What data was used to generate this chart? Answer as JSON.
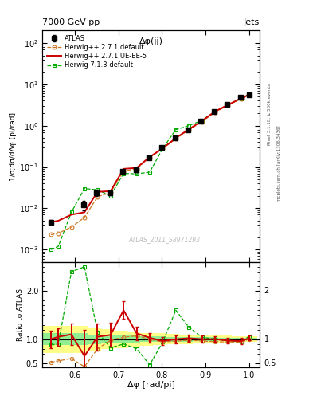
{
  "title_left": "7000 GeV pp",
  "title_right": "Jets",
  "plot_title": "Δφ(jj)",
  "watermark": "ATLAS_2011_S8971293",
  "ylabel_main": "1/σ;dσ/dΔφ [pi/rad]",
  "ylabel_ratio": "Ratio to ATLAS",
  "xlabel": "Δφ [rad/pi]",
  "right_label_top": "Rivet 3.1.10, ≥ 500k events",
  "right_label_bot": "mcplots.cern.ch [arXiv:1306.3436]",
  "atlas_x": [
    0.545,
    0.62,
    0.65,
    0.68,
    0.71,
    0.74,
    0.77,
    0.8,
    0.83,
    0.86,
    0.89,
    0.92,
    0.95,
    0.98,
    1.0
  ],
  "atlas_y": [
    0.0046,
    0.012,
    0.024,
    0.024,
    0.077,
    0.084,
    0.17,
    0.3,
    0.5,
    0.8,
    1.3,
    2.2,
    3.3,
    4.8,
    5.5
  ],
  "atlas_yerr": [
    0.0006,
    0.003,
    0.004,
    0.003,
    0.008,
    0.008,
    0.013,
    0.02,
    0.04,
    0.05,
    0.09,
    0.14,
    0.2,
    0.3,
    0.3
  ],
  "hw271_x": [
    0.545,
    0.562,
    0.592,
    0.622,
    0.652,
    0.682,
    0.712,
    0.742,
    0.772,
    0.802,
    0.832,
    0.862,
    0.892,
    0.922,
    0.952,
    0.982,
    1.0
  ],
  "hw271_y": [
    0.0023,
    0.0025,
    0.0035,
    0.006,
    0.019,
    0.024,
    0.08,
    0.09,
    0.17,
    0.28,
    0.48,
    0.78,
    1.25,
    2.1,
    3.1,
    4.5,
    5.5
  ],
  "hw271ue_x": [
    0.545,
    0.562,
    0.592,
    0.622,
    0.652,
    0.682,
    0.712,
    0.742,
    0.772,
    0.802,
    0.832,
    0.862,
    0.892,
    0.922,
    0.952,
    0.982,
    1.0
  ],
  "hw271ue_y": [
    0.0046,
    0.005,
    0.007,
    0.008,
    0.025,
    0.026,
    0.09,
    0.095,
    0.175,
    0.285,
    0.5,
    0.82,
    1.3,
    2.2,
    3.2,
    4.6,
    5.6
  ],
  "hw271ue_yerr": [
    0.0006,
    0.0006,
    0.001,
    0.005,
    0.005,
    0.005,
    0.01,
    0.01,
    0.015,
    0.025,
    0.04,
    0.06,
    0.1,
    0.15,
    0.2,
    0.3,
    0.3
  ],
  "hw713_x": [
    0.545,
    0.562,
    0.592,
    0.622,
    0.652,
    0.682,
    0.712,
    0.742,
    0.772,
    0.802,
    0.832,
    0.862,
    0.892,
    0.922,
    0.952,
    0.982,
    1.0
  ],
  "hw713_y": [
    0.001,
    0.0012,
    0.008,
    0.03,
    0.028,
    0.02,
    0.07,
    0.068,
    0.075,
    0.28,
    0.8,
    1.0,
    1.35,
    2.2,
    3.2,
    4.5,
    5.8
  ],
  "ratio_hw271_x": [
    0.545,
    0.562,
    0.592,
    0.622,
    0.652,
    0.682,
    0.712,
    0.742,
    0.772,
    0.802,
    0.832,
    0.862,
    0.892,
    0.922,
    0.952,
    0.982,
    1.0
  ],
  "ratio_hw271_y": [
    0.52,
    0.55,
    0.6,
    0.43,
    0.8,
    0.98,
    1.04,
    1.07,
    1.0,
    0.94,
    0.96,
    0.98,
    0.96,
    0.95,
    0.94,
    0.94,
    1.0
  ],
  "ratio_hw271ue_x": [
    0.545,
    0.562,
    0.592,
    0.622,
    0.652,
    0.682,
    0.712,
    0.742,
    0.772,
    0.802,
    0.832,
    0.862,
    0.892,
    0.922,
    0.952,
    0.982,
    1.0
  ],
  "ratio_hw271ue_y": [
    1.0,
    1.05,
    1.1,
    0.65,
    1.05,
    1.09,
    1.6,
    1.12,
    1.03,
    0.96,
    1.0,
    1.02,
    1.0,
    1.0,
    0.97,
    0.96,
    1.02
  ],
  "ratio_hw271ue_yerr": [
    0.18,
    0.18,
    0.22,
    0.55,
    0.28,
    0.25,
    0.18,
    0.14,
    0.1,
    0.08,
    0.08,
    0.07,
    0.07,
    0.06,
    0.06,
    0.06,
    0.05
  ],
  "ratio_hw713_x": [
    0.545,
    0.562,
    0.592,
    0.622,
    0.652,
    0.682,
    0.712,
    0.742,
    0.772,
    0.802,
    0.832,
    0.862,
    0.892,
    0.922,
    0.952,
    0.982,
    1.0
  ],
  "ratio_hw713_y": [
    0.88,
    0.9,
    2.4,
    2.5,
    1.15,
    0.82,
    0.9,
    0.8,
    0.47,
    0.94,
    1.6,
    1.25,
    1.04,
    1.0,
    0.97,
    0.94,
    1.06
  ],
  "green_band_x": [
    0.52,
    0.6,
    0.63,
    0.66,
    0.69,
    0.72,
    0.75,
    0.78,
    0.81,
    0.84,
    0.87,
    0.9,
    0.93,
    0.96,
    1.02
  ],
  "green_band_lo": [
    0.88,
    0.88,
    0.9,
    0.91,
    0.92,
    0.93,
    0.94,
    0.94,
    0.95,
    0.95,
    0.96,
    0.96,
    0.97,
    0.97,
    0.97
  ],
  "green_band_hi": [
    1.12,
    1.12,
    1.1,
    1.09,
    1.08,
    1.07,
    1.06,
    1.06,
    1.05,
    1.05,
    1.04,
    1.04,
    1.03,
    1.03,
    1.03
  ],
  "yellow_band_x": [
    0.52,
    0.6,
    0.63,
    0.66,
    0.69,
    0.72,
    0.75,
    0.78,
    0.81,
    0.84,
    0.87,
    0.9,
    0.93,
    0.96,
    1.02
  ],
  "yellow_band_lo": [
    0.72,
    0.72,
    0.76,
    0.79,
    0.82,
    0.85,
    0.87,
    0.88,
    0.89,
    0.9,
    0.91,
    0.92,
    0.93,
    0.94,
    0.94
  ],
  "yellow_band_hi": [
    1.28,
    1.28,
    1.24,
    1.21,
    1.18,
    1.15,
    1.13,
    1.12,
    1.11,
    1.1,
    1.09,
    1.08,
    1.07,
    1.06,
    1.06
  ],
  "color_atlas": "#000000",
  "color_hw271": "#cc7722",
  "color_hw271ue": "#cc0000",
  "color_hw713": "#00aa00",
  "color_green_band": "#90ee90",
  "color_yellow_band": "#ffff88",
  "ylim_main": [
    0.0005,
    200
  ],
  "ylim_ratio": [
    0.42,
    2.6
  ],
  "xlim": [
    0.525,
    1.025
  ]
}
